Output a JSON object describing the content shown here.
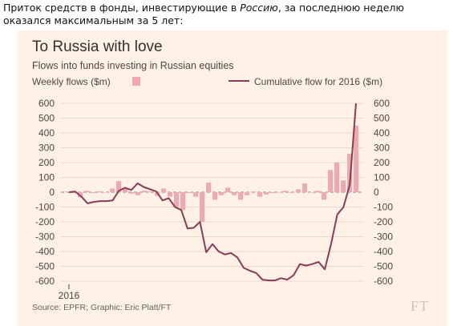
{
  "caption": {
    "text_before": "Приток средств в фонды, инвестирующие в ",
    "emphasis": "Россию",
    "text_after": ", за последнюю неделю оказался максимальным за 5 лет:"
  },
  "chart_data": {
    "type": "bar+line",
    "title": "To Russia with love",
    "subtitle": "Flows into funds investing in Russian equities",
    "source": "Source: EPFR; Graphic: Eric Platt/FT",
    "logo_text": "FT",
    "x_label": "2016",
    "y_ticks": [
      600,
      500,
      400,
      300,
      200,
      100,
      0,
      -100,
      -200,
      -300,
      -400,
      -500,
      -600
    ],
    "ylim": [
      -600,
      600
    ],
    "legend_placement": "top",
    "series": [
      {
        "name": "Weekly flows ($m)",
        "type": "bar",
        "axis": "left",
        "color": "#f2a8b0",
        "values": [
          5,
          -5,
          -35,
          10,
          -5,
          5,
          0,
          25,
          75,
          25,
          -10,
          -20,
          10,
          5,
          -25,
          25,
          -30,
          -100,
          -120,
          -5,
          -30,
          -200,
          65,
          -50,
          -20,
          30,
          -20,
          -50,
          -20,
          5,
          -30,
          -15,
          -5,
          0,
          10,
          -5,
          20,
          60,
          0,
          10,
          -50,
          150,
          200,
          80,
          260,
          450
        ]
      },
      {
        "name": "Cumulative flow for 2016 ($m)",
        "type": "line",
        "axis": "right",
        "color": "#8a3a5b",
        "values": [
          0,
          5,
          -30,
          -75,
          -65,
          -60,
          -60,
          -55,
          10,
          30,
          15,
          60,
          35,
          20,
          5,
          -55,
          -40,
          -100,
          -120,
          -245,
          -240,
          -200,
          -405,
          -350,
          -400,
          -420,
          -410,
          -440,
          -510,
          -530,
          -545,
          -590,
          -595,
          -595,
          -580,
          -590,
          -560,
          -485,
          -495,
          -485,
          -470,
          -520,
          -350,
          -150,
          -100,
          50,
          600
        ]
      }
    ]
  }
}
